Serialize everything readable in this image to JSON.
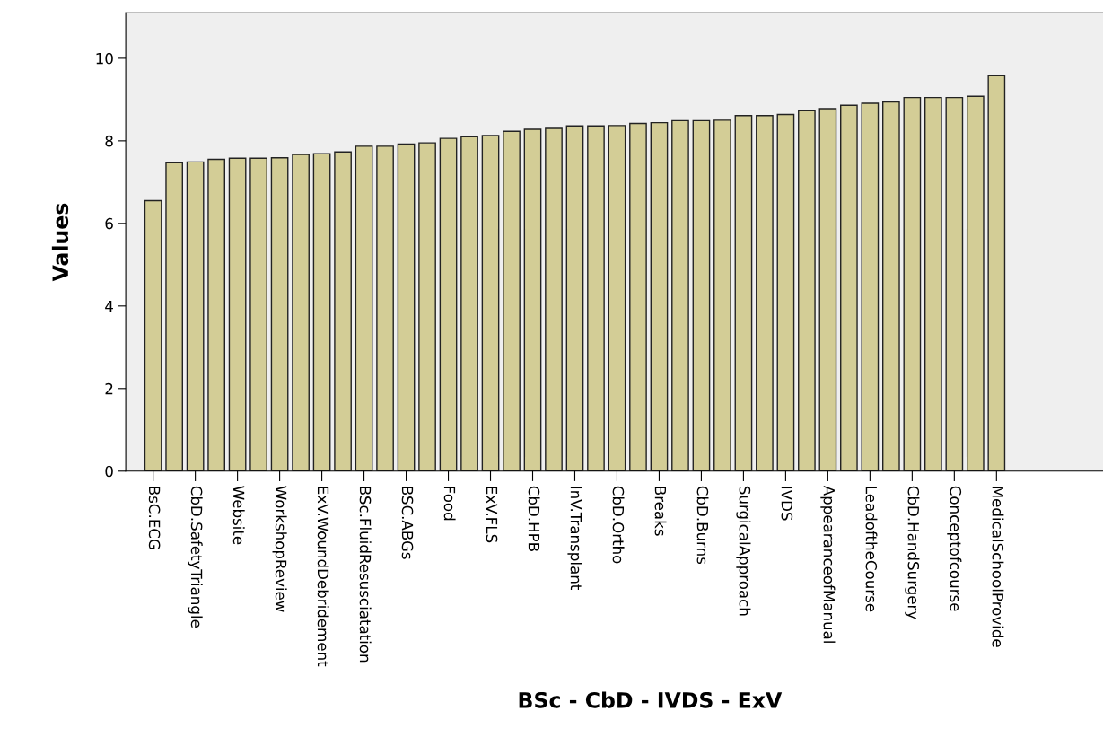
{
  "chart_data": {
    "type": "bar",
    "xlabel": "BSc - CbD - IVDS - ExV",
    "ylabel": "Values",
    "categories": [
      "BsC.ECG",
      null,
      "CbD.SafetyTriangle",
      null,
      "Website",
      null,
      "WorkshopReview",
      null,
      "ExV.WoundDebridement",
      null,
      "BSc.FluidResusciatation",
      null,
      "BSC.ABGs",
      null,
      "Food",
      null,
      "ExV.FLS",
      null,
      "CbD.HPB",
      null,
      "InV.Transplant",
      null,
      "CbD.Ortho",
      null,
      "Breaks",
      null,
      "CbD.Burns",
      null,
      "SurgicalApproach",
      null,
      "IVDS",
      null,
      "AppearanceofManual",
      null,
      "LeadoftheCourse",
      null,
      "CbD.HandSurgery",
      null,
      "Conceptofcourse",
      null,
      "MedicalSchoolProvide"
    ],
    "values": [
      6.55,
      7.47,
      7.49,
      7.55,
      7.58,
      7.58,
      7.59,
      7.67,
      7.69,
      7.73,
      7.87,
      7.87,
      7.92,
      7.95,
      8.06,
      8.1,
      8.13,
      8.23,
      8.28,
      8.3,
      8.36,
      8.36,
      8.37,
      8.42,
      8.44,
      8.49,
      8.49,
      8.5,
      8.61,
      8.61,
      8.64,
      8.73,
      8.78,
      8.86,
      8.91,
      8.94,
      9.05,
      9.05,
      9.05,
      9.08,
      9.58
    ],
    "color": "#d3cd96",
    "ylim": [
      0,
      11.1
    ],
    "yticks": [
      0,
      2,
      4,
      6,
      8,
      10
    ],
    "grid": false
  }
}
